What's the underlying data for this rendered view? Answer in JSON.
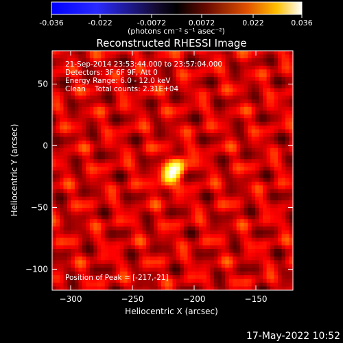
{
  "colorbar": {
    "ticks": [
      "-0.036",
      "-0.022",
      "-0.0072",
      "0.0072",
      "0.022",
      "0.036"
    ],
    "range": [
      -0.036,
      0.036
    ],
    "units_label": "(photons cm⁻² s⁻¹ asec⁻²)"
  },
  "chart_data": {
    "type": "heatmap",
    "title": "Reconstructed RHESSI Image",
    "xlabel": "Heliocentric X (arcsec)",
    "ylabel": "Heliocentric Y (arcsec)",
    "xlim": [
      -315,
      -120
    ],
    "ylim": [
      -117,
      77
    ],
    "xticks": [
      -300,
      -250,
      -200,
      -150
    ],
    "yticks": [
      -100,
      -50,
      0,
      50
    ],
    "colormap": "hot",
    "peak_position": [
      -217,
      -21
    ],
    "annotations": [
      "21-Sep-2014 23:53:44.000 to 23:57:04.000",
      "Detectors: 3F 6F 9F, Att 0",
      "Energy Range: 6.0 - 12.0 keV",
      "Clean    Total counts: 2.31E+04",
      "Position of Peak = [-217,-21]"
    ]
  },
  "timestamp": "17-May-2022 10:52"
}
